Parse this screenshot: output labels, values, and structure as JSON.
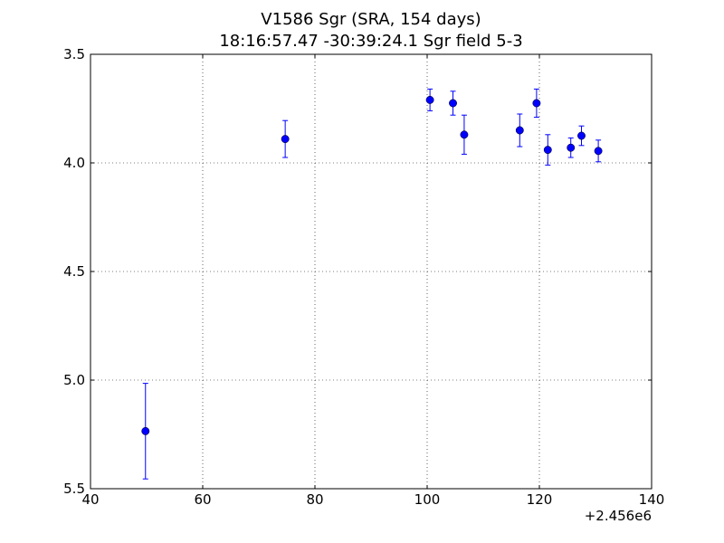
{
  "chart_data": {
    "type": "scatter",
    "title_line1": "V1586 Sgr (SRA, 154 days)",
    "title_line2": "18:16:57.47 -30:39:24.1 Sgr field 5-3",
    "xlabel": "",
    "ylabel": "",
    "x_offset_label": "+2.456e6",
    "xlim": [
      40,
      140
    ],
    "ylim": [
      5.5,
      3.5
    ],
    "y_inverted": true,
    "grid": true,
    "x_ticks": [
      40,
      60,
      80,
      100,
      120,
      140
    ],
    "x_tick_labels": [
      "40",
      "60",
      "80",
      "100",
      "120",
      "140"
    ],
    "y_ticks": [
      3.5,
      4.0,
      4.5,
      5.0,
      5.5
    ],
    "y_tick_labels": [
      "3.5",
      "4.0",
      "4.5",
      "5.0",
      "5.5"
    ],
    "marker_color": "#0000ff",
    "points": [
      {
        "x": 49.8,
        "y": 5.235,
        "err": 0.22
      },
      {
        "x": 74.7,
        "y": 3.89,
        "err": 0.085
      },
      {
        "x": 100.5,
        "y": 3.71,
        "err": 0.05
      },
      {
        "x": 104.6,
        "y": 3.725,
        "err": 0.055
      },
      {
        "x": 106.6,
        "y": 3.87,
        "err": 0.09
      },
      {
        "x": 116.5,
        "y": 3.85,
        "err": 0.075
      },
      {
        "x": 119.5,
        "y": 3.725,
        "err": 0.065
      },
      {
        "x": 121.5,
        "y": 3.94,
        "err": 0.07
      },
      {
        "x": 125.6,
        "y": 3.93,
        "err": 0.045
      },
      {
        "x": 127.5,
        "y": 3.875,
        "err": 0.045
      },
      {
        "x": 130.5,
        "y": 3.945,
        "err": 0.05
      }
    ]
  }
}
